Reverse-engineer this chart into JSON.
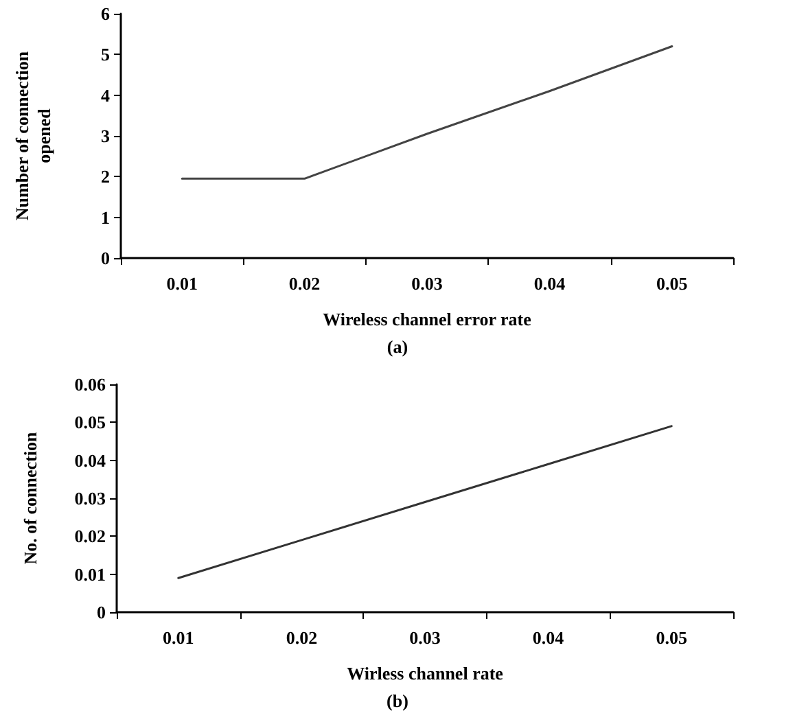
{
  "chart_data": [
    {
      "type": "line",
      "categories": [
        "0.01",
        "0.02",
        "0.03",
        "0.04",
        "0.05"
      ],
      "xlabel": "Wireless channel error rate",
      "ylabel": "Number of connection opened",
      "annotations": [
        "(a)"
      ],
      "series": [
        {
          "color": "#444444",
          "values": [
            1.95,
            1.95,
            3.05,
            4.1,
            5.2
          ]
        }
      ],
      "ylim": [
        0,
        6
      ],
      "yticks": [
        0,
        1,
        2,
        3,
        4,
        5,
        6
      ],
      "grid": false,
      "marker": "none",
      "line_style": "solid"
    },
    {
      "type": "line",
      "categories": [
        "0.01",
        "0.02",
        "0.03",
        "0.04",
        "0.05"
      ],
      "xlabel": "Wirless channel rate",
      "ylabel": "No. of connection",
      "annotations": [
        "(b)"
      ],
      "series": [
        {
          "color": "#333333",
          "values": [
            0.009,
            0.019,
            0.029,
            0.039,
            0.049
          ]
        }
      ],
      "ylim": [
        0,
        0.06
      ],
      "yticks": [
        0,
        0.01,
        0.02,
        0.03,
        0.04,
        0.05,
        0.06
      ],
      "grid": false,
      "marker": "none",
      "line_style": "solid"
    }
  ]
}
